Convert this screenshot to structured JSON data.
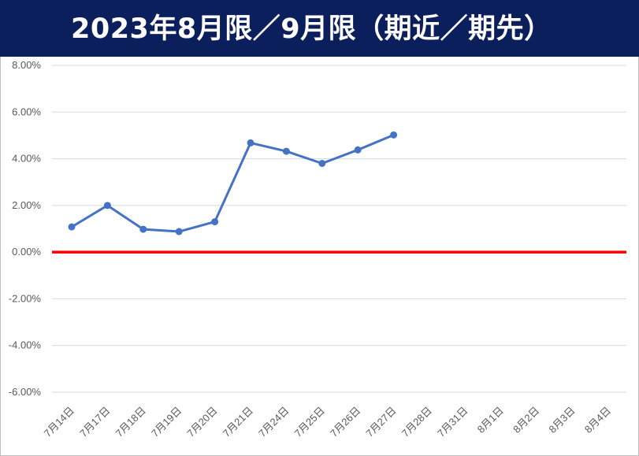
{
  "title": "2023年8月限／9月限（期近／期先）",
  "colors": {
    "title_background": "#0b1f5c",
    "title_text": "#ffffff",
    "series_line": "#4472c4",
    "zero_line": "#ff0000",
    "gridline": "#d9d9d9",
    "tick_text": "#595959"
  },
  "chart_data": {
    "type": "line",
    "title": "2023年8月限／9月限（期近／期先）",
    "xlabel": "",
    "ylabel": "",
    "categories": [
      "7月14日",
      "7月17日",
      "7月18日",
      "7月19日",
      "7月20日",
      "7月21日",
      "7月24日",
      "7月25日",
      "7月26日",
      "7月27日",
      "7月28日",
      "7月31日",
      "8月1日",
      "8月2日",
      "8月3日",
      "8月4日"
    ],
    "series": [
      {
        "values": [
          0.0108,
          0.02,
          0.0098,
          0.0088,
          0.013,
          0.0468,
          0.0432,
          0.038,
          0.0438,
          0.0502,
          null,
          null,
          null,
          null,
          null,
          null
        ]
      }
    ],
    "reference_line": {
      "value": 0.0,
      "color": "#ff0000"
    },
    "ylim": [
      -0.06,
      0.08
    ],
    "y_ticks": [
      "8.00%",
      "6.00%",
      "4.00%",
      "2.00%",
      "0.00%",
      "-2.00%",
      "-4.00%",
      "-6.00%"
    ],
    "y_tick_values": [
      0.08,
      0.06,
      0.04,
      0.02,
      0.0,
      -0.02,
      -0.04,
      -0.06
    ],
    "grid": true,
    "legend": "none"
  }
}
